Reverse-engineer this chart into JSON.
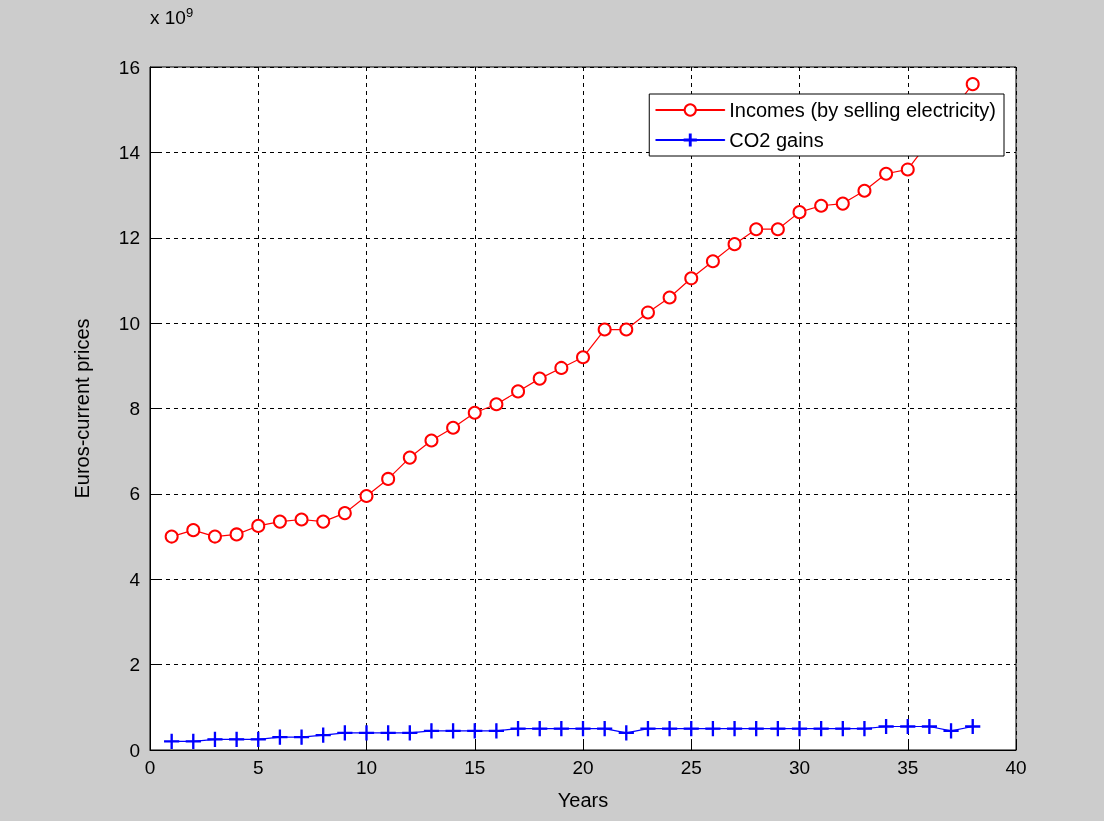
{
  "chart_data": {
    "type": "line",
    "xlabel": "Years",
    "ylabel": "Euros-current prices",
    "annotations": [
      "x 10$^{9}$"
    ],
    "x": [
      1,
      2,
      3,
      4,
      5,
      6,
      7,
      8,
      9,
      10,
      11,
      12,
      13,
      14,
      15,
      16,
      17,
      18,
      19,
      20,
      21,
      22,
      23,
      24,
      25,
      26,
      27,
      28,
      29,
      30,
      31,
      32,
      33,
      34,
      35,
      36,
      37,
      38
    ],
    "series": [
      {
        "name": "Incomes (by selling electricity)",
        "color": "#ff0000",
        "marker": "circle",
        "values": [
          5.0,
          5.15,
          5.0,
          5.05,
          5.25,
          5.35,
          5.4,
          5.35,
          5.55,
          5.95,
          6.35,
          6.85,
          7.25,
          7.55,
          7.9,
          8.1,
          8.4,
          8.7,
          8.95,
          9.2,
          9.85,
          9.85,
          10.25,
          10.6,
          11.05,
          11.45,
          11.85,
          12.2,
          12.2,
          12.6,
          12.75,
          12.8,
          13.1,
          13.5,
          13.6,
          null,
          null,
          15.6
        ]
      },
      {
        "name": "CO2 gains",
        "color": "#0000ff",
        "marker": "cross",
        "values": [
          0.2,
          0.2,
          0.25,
          0.25,
          0.25,
          0.3,
          0.3,
          0.35,
          0.4,
          0.4,
          0.4,
          0.4,
          0.45,
          0.45,
          0.45,
          0.45,
          0.5,
          0.5,
          0.5,
          0.5,
          0.5,
          0.4,
          0.5,
          0.5,
          0.5,
          0.5,
          0.5,
          0.5,
          0.5,
          0.5,
          0.5,
          0.5,
          0.5,
          0.55,
          0.55,
          0.55,
          0.45,
          0.55
        ]
      }
    ],
    "xlim": [
      0,
      40
    ],
    "xticks": [
      0,
      5,
      10,
      15,
      20,
      25,
      30,
      35,
      40
    ],
    "ylim": [
      0,
      16
    ],
    "yticks": [
      0,
      2,
      4,
      6,
      8,
      10,
      12,
      14,
      16
    ],
    "grid": true,
    "legend": "top right",
    "line_style": "solid"
  }
}
